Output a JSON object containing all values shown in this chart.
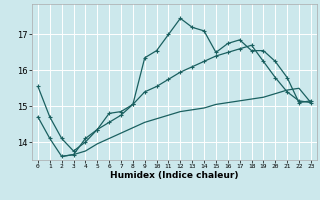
{
  "xlabel": "Humidex (Indice chaleur)",
  "bg_color": "#cce8ec",
  "grid_color": "#ffffff",
  "line_color": "#1a6060",
  "xlim": [
    -0.5,
    23.5
  ],
  "ylim": [
    13.5,
    17.85
  ],
  "yticks": [
    14,
    15,
    16,
    17
  ],
  "xticks": [
    0,
    1,
    2,
    3,
    4,
    5,
    6,
    7,
    8,
    9,
    10,
    11,
    12,
    13,
    14,
    15,
    16,
    17,
    18,
    19,
    20,
    21,
    22,
    23
  ],
  "line1_x": [
    0,
    1,
    2,
    3,
    4,
    5,
    6,
    7,
    8,
    9,
    10,
    11,
    12,
    13,
    14,
    15,
    16,
    17,
    18,
    19,
    20,
    21,
    22,
    23
  ],
  "line1_y": [
    15.55,
    14.7,
    14.1,
    13.75,
    14.0,
    14.35,
    14.8,
    14.85,
    15.05,
    16.35,
    16.55,
    17.0,
    17.45,
    17.2,
    17.1,
    16.5,
    16.75,
    16.85,
    16.55,
    16.55,
    16.25,
    15.8,
    15.1,
    15.15
  ],
  "line2_x": [
    0,
    1,
    2,
    3,
    4,
    5,
    6,
    7,
    8,
    9,
    10,
    11,
    12,
    13,
    14,
    15,
    16,
    17,
    18,
    19,
    20,
    21,
    22,
    23
  ],
  "line2_y": [
    14.7,
    14.1,
    13.6,
    13.65,
    14.1,
    14.35,
    14.55,
    14.75,
    15.05,
    15.4,
    15.55,
    15.75,
    15.95,
    16.1,
    16.25,
    16.4,
    16.5,
    16.6,
    16.7,
    16.25,
    15.8,
    15.4,
    15.15,
    15.1
  ],
  "line3_x": [
    2,
    3,
    4,
    5,
    6,
    7,
    8,
    9,
    10,
    11,
    12,
    13,
    14,
    15,
    16,
    17,
    18,
    19,
    20,
    21,
    22,
    23
  ],
  "line3_y": [
    13.6,
    13.65,
    13.75,
    13.95,
    14.1,
    14.25,
    14.4,
    14.55,
    14.65,
    14.75,
    14.85,
    14.9,
    14.95,
    15.05,
    15.1,
    15.15,
    15.2,
    15.25,
    15.35,
    15.45,
    15.5,
    15.1
  ],
  "linewidth": 0.9,
  "marker": "+",
  "markersize": 3.5,
  "markeredgewidth": 0.8,
  "xlabel_fontsize": 6.5,
  "xlabel_fontweight": "bold",
  "xtick_fontsize": 4.5,
  "ytick_fontsize": 6.0
}
